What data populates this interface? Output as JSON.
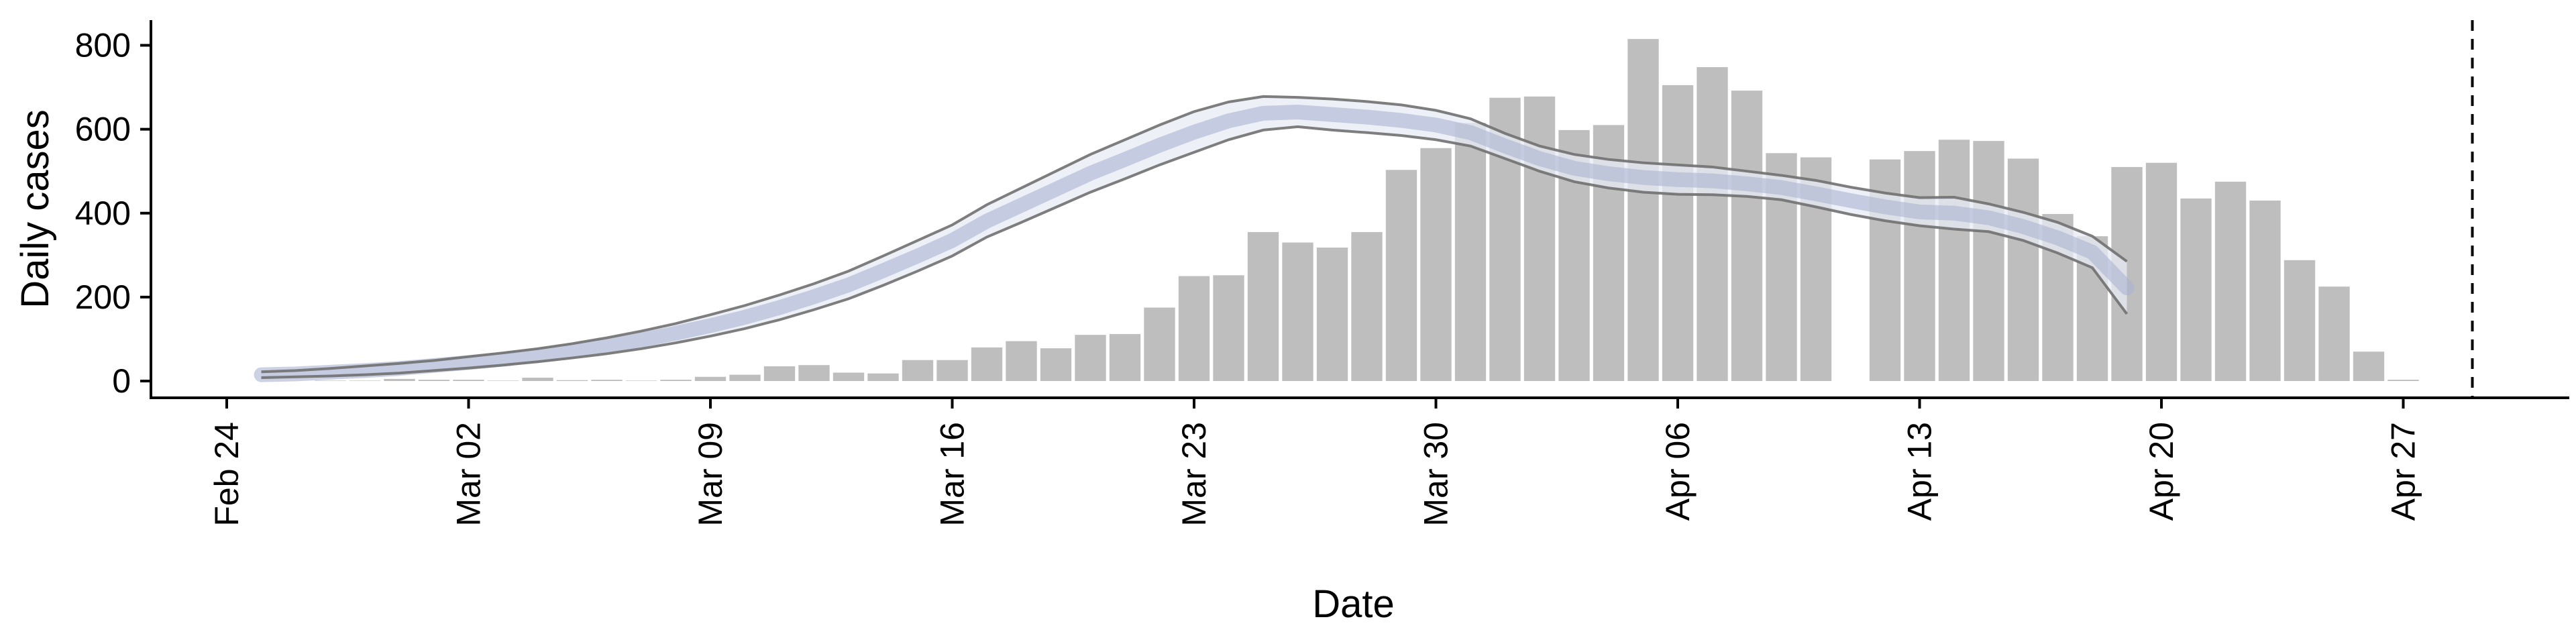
{
  "chart_data": {
    "type": "bar",
    "title": "",
    "xlabel": "Date",
    "ylabel": "Daily cases",
    "ylim": [
      -40,
      860
    ],
    "yticks": [
      0,
      200,
      400,
      600,
      800
    ],
    "x_start": "Feb 24",
    "xlim": [
      -2,
      64
    ],
    "xticks": [
      {
        "label": "Feb 24",
        "day": 0
      },
      {
        "label": "Mar 02",
        "day": 7
      },
      {
        "label": "Mar 09",
        "day": 14
      },
      {
        "label": "Mar 16",
        "day": 21
      },
      {
        "label": "Mar 23",
        "day": 28
      },
      {
        "label": "Mar 30",
        "day": 35
      },
      {
        "label": "Apr 06",
        "day": 42
      },
      {
        "label": "Apr 13",
        "day": 49
      },
      {
        "label": "Apr 20",
        "day": 56
      },
      {
        "label": "Apr 27",
        "day": 63
      }
    ],
    "bars": {
      "color": "#bebebe",
      "values": [
        0,
        0,
        0,
        1,
        1,
        5,
        3,
        3,
        1,
        8,
        2,
        3,
        1,
        3,
        10,
        15,
        35,
        38,
        20,
        18,
        50,
        50,
        80,
        95,
        78,
        110,
        112,
        175,
        250,
        252,
        355,
        330,
        318,
        355,
        503,
        555,
        615,
        675,
        678,
        598,
        610,
        815,
        705,
        748,
        692,
        543,
        533,
        0,
        528,
        548,
        575,
        572,
        530,
        398,
        345,
        510,
        520,
        435,
        475,
        430,
        288,
        225,
        70,
        3
      ]
    },
    "estimate_band": {
      "fill_color": "#e8ebf4",
      "edge_color": "#707070",
      "day_start": 1,
      "upper": [
        22,
        25,
        30,
        36,
        42,
        49,
        58,
        67,
        77,
        89,
        103,
        119,
        137,
        158,
        180,
        205,
        232,
        262,
        298,
        335,
        372,
        420,
        460,
        500,
        540,
        575,
        610,
        642,
        665,
        678,
        676,
        672,
        666,
        658,
        645,
        625,
        590,
        560,
        540,
        528,
        520,
        515,
        510,
        500,
        490,
        478,
        462,
        448,
        437,
        438,
        422,
        402,
        378,
        345,
        285
      ],
      "lower": [
        8,
        10,
        12,
        15,
        19,
        25,
        31,
        38,
        46,
        55,
        65,
        77,
        91,
        107,
        125,
        146,
        170,
        196,
        228,
        262,
        298,
        343,
        378,
        414,
        450,
        482,
        515,
        545,
        575,
        598,
        606,
        598,
        592,
        585,
        575,
        560,
        530,
        500,
        475,
        460,
        450,
        445,
        444,
        440,
        432,
        415,
        397,
        382,
        370,
        362,
        356,
        335,
        305,
        270,
        160
      ]
    },
    "estimate_median": {
      "color": "#aab4d2",
      "values": [
        15,
        17,
        21,
        25,
        30,
        37,
        44,
        52,
        61,
        72,
        84,
        98,
        114,
        132,
        152,
        175,
        201,
        229,
        263,
        298,
        335,
        381,
        419,
        457,
        495,
        528,
        562,
        593,
        620,
        638,
        641,
        635,
        629,
        621,
        610,
        592,
        560,
        530,
        507,
        494,
        485,
        480,
        477,
        470,
        461,
        446,
        430,
        415,
        403,
        400,
        389,
        368,
        341,
        307,
        222
      ]
    },
    "cutoff_line": {
      "day": 65,
      "style": "dashed"
    },
    "grid": false,
    "legend": "none"
  }
}
